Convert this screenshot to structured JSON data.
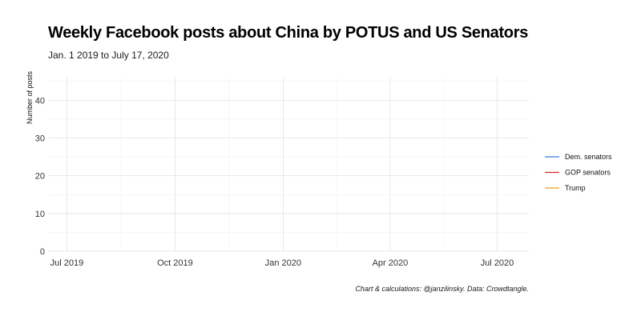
{
  "chart_data": {
    "type": "line",
    "title": "Weekly Facebook posts about China by POTUS and US Senators",
    "subtitle": "Jan. 1 2019 to July 17, 2020",
    "xlabel": "",
    "ylabel": "Number of posts",
    "xlim": [
      "2019-06-15",
      "2020-07-28"
    ],
    "ylim": [
      0,
      46
    ],
    "x_ticks": [
      {
        "date": "2019-07-01",
        "label": "Jul 2019"
      },
      {
        "date": "2019-10-01",
        "label": "Oct 2019"
      },
      {
        "date": "2020-01-01",
        "label": "Jan 2020"
      },
      {
        "date": "2020-04-01",
        "label": "Apr 2020"
      },
      {
        "date": "2020-07-01",
        "label": "Jul 2020"
      }
    ],
    "y_ticks": [
      0,
      10,
      20,
      30,
      40
    ],
    "grid": true,
    "legend_position": "right",
    "series": [
      {
        "name": "Dem. senators",
        "color": "#3a78d8",
        "x": [],
        "values": []
      },
      {
        "name": "GOP senators",
        "color": "#d42a2a",
        "x": [],
        "values": []
      },
      {
        "name": "Trump",
        "color": "#f0a020",
        "x": [],
        "values": []
      }
    ],
    "caption": "Chart & calculations: @janzilinsky. Data: Crowdtangle."
  }
}
